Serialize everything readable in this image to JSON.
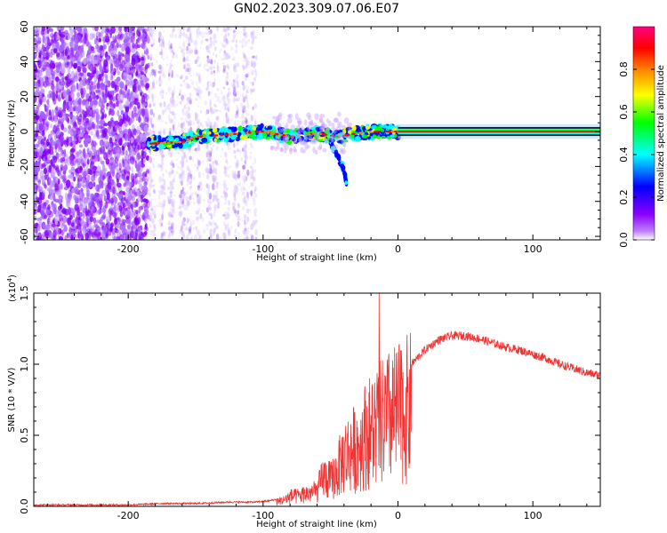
{
  "title": "GN02.2023.309.07.06.E07",
  "chart_data": [
    {
      "type": "heatmap",
      "xlabel": "Height of straight line (km)",
      "ylabel": "Frequency (Hz)",
      "xlim": [
        -270,
        150
      ],
      "ylim": [
        -62,
        60
      ],
      "xticks": [
        -200,
        -100,
        0,
        100
      ],
      "yticks": [
        60,
        40,
        20,
        0,
        -20,
        -40,
        -60
      ],
      "colorbar": {
        "label": "Normalized spectral amplitude",
        "range": [
          0.0,
          1.0
        ],
        "ticks": [
          0.0,
          0.2,
          0.4,
          0.6,
          0.8
        ],
        "colormap": [
          "#ffffff",
          "#8a00ff",
          "#0000ff",
          "#00ffff",
          "#00ff00",
          "#ffff00",
          "#ff8000",
          "#ff0000",
          "#ff0080"
        ]
      },
      "features": {
        "noise_region_x": [
          -270,
          -185
        ],
        "faint_streaks_x": [
          -185,
          -105
        ],
        "signal_track": {
          "x": [
            -185,
            -160,
            -150,
            -130,
            -100,
            -80,
            -60,
            -45,
            -30,
            -15,
            0,
            150
          ],
          "frequency": [
            -7,
            -6,
            -3,
            -2,
            0,
            -3,
            -1,
            -3,
            -1,
            0,
            0,
            0
          ]
        },
        "branch_track": {
          "x": [
            -50,
            -40,
            -38
          ],
          "frequency": [
            -6,
            -22,
            -30
          ]
        }
      }
    },
    {
      "type": "line",
      "xlabel": "Height of straight line (km)",
      "ylabel": "SNR (10 * V/V)",
      "yscale_label": "(x10",
      "yscale_exp": "4",
      "xlim": [
        -270,
        150
      ],
      "ylim": [
        0,
        1.5
      ],
      "xticks": [
        -200,
        -100,
        0,
        100
      ],
      "yticks": [
        "0.0",
        "0.5",
        "1.0",
        "1.5"
      ],
      "series": [
        {
          "color": "#ee3333",
          "x": [
            -270,
            -250,
            -230,
            -200,
            -175,
            -150,
            -125,
            -105,
            -95,
            -85,
            -80,
            -75,
            -70,
            -60,
            -55,
            -50,
            -45,
            -40,
            -35,
            -30,
            -25,
            -20,
            -15,
            -10,
            -5,
            0,
            5,
            10,
            15,
            20,
            30,
            40,
            50,
            60,
            70,
            80,
            90,
            100,
            110,
            120,
            130,
            140,
            150
          ],
          "y": [
            0.01,
            0.01,
            0.01,
            0.01,
            0.02,
            0.02,
            0.03,
            0.03,
            0.04,
            0.06,
            0.1,
            0.1,
            0.12,
            0.15,
            0.3,
            0.25,
            0.35,
            0.5,
            0.55,
            0.6,
            0.7,
            0.75,
            0.8,
            0.85,
            0.9,
            0.92,
            0.95,
            1.0,
            1.05,
            1.1,
            1.17,
            1.2,
            1.2,
            1.18,
            1.15,
            1.12,
            1.1,
            1.07,
            1.04,
            1.0,
            0.97,
            0.94,
            0.92
          ]
        }
      ],
      "spike": {
        "x": -14,
        "y": 1.5
      }
    }
  ]
}
